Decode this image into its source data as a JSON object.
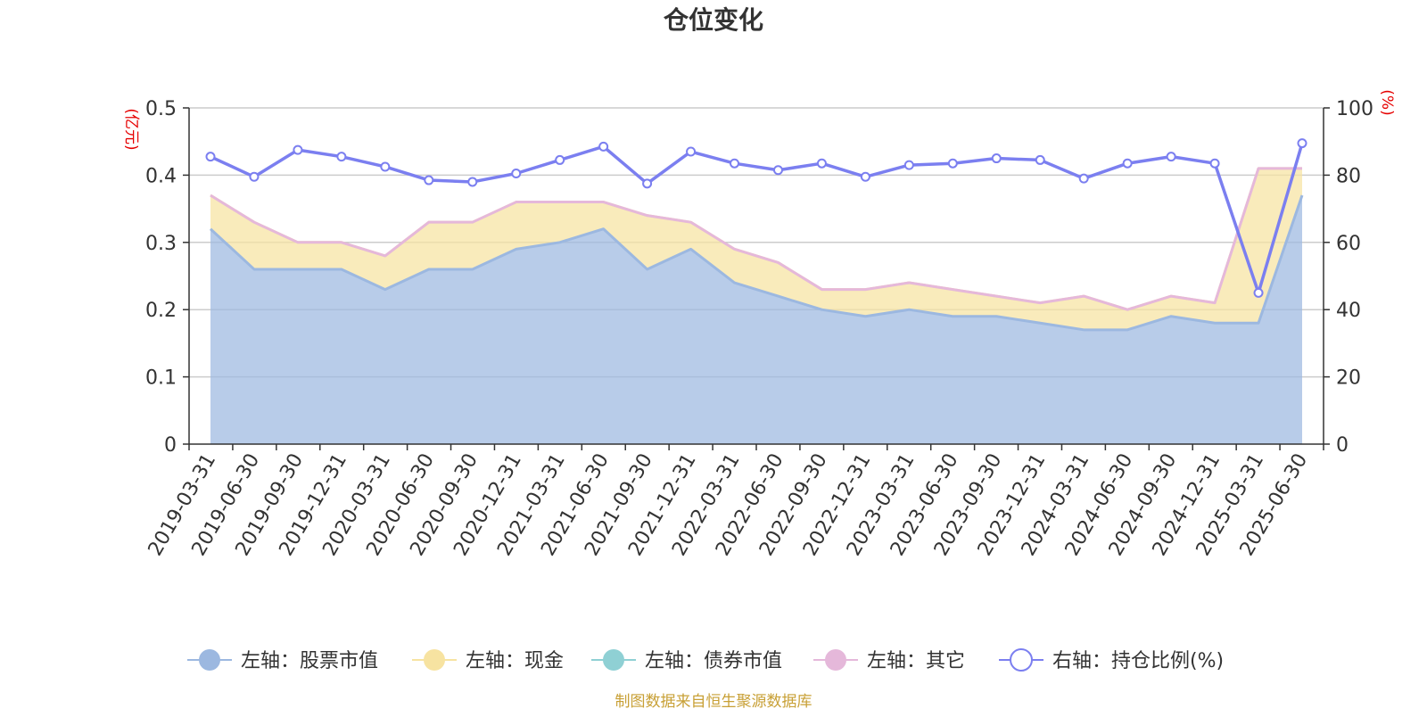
{
  "chart_data": {
    "type": "area",
    "title": "仓位变化",
    "y_left_unit": "(亿元)",
    "y_right_unit": "(%)",
    "ylim_left": [
      0,
      0.5
    ],
    "ylim_right": [
      0,
      100
    ],
    "yticks_left": [
      "0",
      "0.1",
      "0.2",
      "0.3",
      "0.4",
      "0.5"
    ],
    "yticks_right": [
      "0",
      "20",
      "40",
      "60",
      "80",
      "100"
    ],
    "grid": true,
    "legend_position": "bottom",
    "categories": [
      "2019-03-31",
      "2019-06-30",
      "2019-09-30",
      "2019-12-31",
      "2020-03-31",
      "2020-06-30",
      "2020-09-30",
      "2020-12-31",
      "2021-03-31",
      "2021-06-30",
      "2021-09-30",
      "2021-12-31",
      "2022-03-31",
      "2022-06-30",
      "2022-09-30",
      "2022-12-31",
      "2023-03-31",
      "2023-06-30",
      "2023-09-30",
      "2023-12-31",
      "2024-03-31",
      "2024-06-30",
      "2024-09-30",
      "2024-12-31",
      "2025-03-31",
      "2025-06-30"
    ],
    "series": [
      {
        "name": "左轴：股票市值",
        "axis": "left",
        "color": "#9cb8e0",
        "values": [
          0.32,
          0.26,
          0.26,
          0.26,
          0.23,
          0.26,
          0.26,
          0.29,
          0.3,
          0.32,
          0.26,
          0.29,
          0.24,
          0.22,
          0.2,
          0.19,
          0.2,
          0.19,
          0.19,
          0.18,
          0.17,
          0.17,
          0.19,
          0.18,
          0.18,
          0.37
        ]
      },
      {
        "name": "左轴：现金",
        "axis": "left",
        "color": "#f7e3a1",
        "values": [
          0.05,
          0.07,
          0.04,
          0.04,
          0.05,
          0.07,
          0.07,
          0.07,
          0.06,
          0.04,
          0.08,
          0.04,
          0.05,
          0.05,
          0.03,
          0.04,
          0.04,
          0.04,
          0.03,
          0.03,
          0.05,
          0.03,
          0.03,
          0.03,
          0.23,
          0.04
        ]
      },
      {
        "name": "左轴：债券市值",
        "axis": "left",
        "color": "#8fd0d4",
        "values": [
          0,
          0,
          0,
          0,
          0,
          0,
          0,
          0,
          0,
          0,
          0,
          0,
          0,
          0,
          0,
          0,
          0,
          0,
          0,
          0,
          0,
          0,
          0,
          0,
          0,
          0
        ]
      },
      {
        "name": "左轴：其它",
        "axis": "left",
        "color": "#e5b8da",
        "values": [
          0,
          0,
          0,
          0,
          0,
          0,
          0,
          0,
          0,
          0,
          0,
          0,
          0,
          0,
          0,
          0,
          0,
          0,
          0,
          0,
          0,
          0,
          0,
          0,
          0,
          0
        ]
      },
      {
        "name": "右轴：持仓比例(%)",
        "axis": "right",
        "color": "#7b7ff0",
        "values": [
          85.5,
          79.5,
          87.5,
          85.5,
          82.5,
          78.5,
          78,
          80.5,
          84.5,
          88.5,
          77.5,
          87,
          83.5,
          81.5,
          83.5,
          79.5,
          83,
          83.5,
          85,
          84.5,
          79,
          83.5,
          85.5,
          83.5,
          45,
          89.5
        ]
      }
    ]
  },
  "footer": {
    "source": "制图数据来自恒生聚源数据库",
    "source_color": "#c8a036"
  }
}
